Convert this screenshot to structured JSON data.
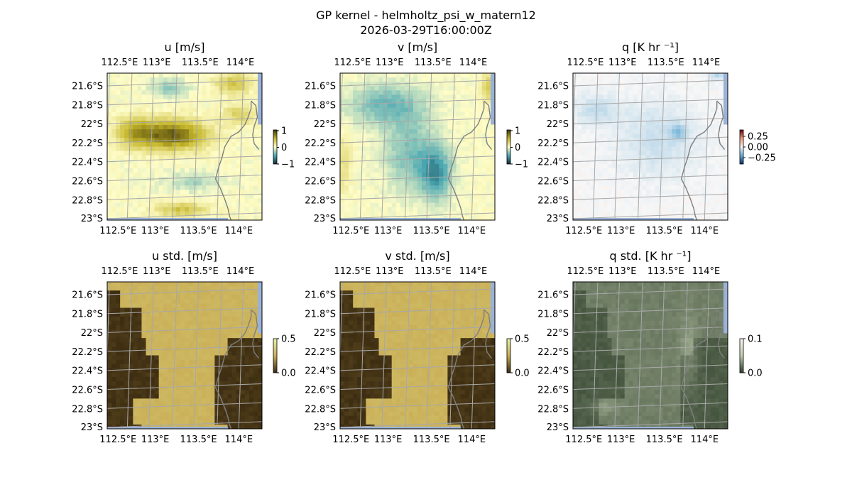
{
  "figure": {
    "title_line1": "GP kernel - helmholtz_psi_w_matern12",
    "title_line2": "2026-03-29T16:00:00Z"
  },
  "chart_data": [
    {
      "type": "heatmap",
      "title": "u [m/s]",
      "x_ticks": [
        "112.5°E",
        "113°E",
        "113.5°E",
        "114°E"
      ],
      "y_ticks": [
        "21.6°S",
        "21.8°S",
        "22°S",
        "22.2°S",
        "22.4°S",
        "22.6°S",
        "22.8°S",
        "23°S"
      ],
      "xlim": [
        112.45,
        114.25
      ],
      "ylim": [
        -23.0,
        -21.47
      ],
      "colorbar": {
        "ticks": [
          "1",
          "0",
          "−1"
        ],
        "range": [
          -1,
          1
        ],
        "colors": [
          "#0b2b3a",
          "#4aa7b2",
          "#fffdc8",
          "#c5b62a",
          "#3d3308"
        ]
      },
      "grid": true,
      "coastline": true,
      "sample_values": [
        [
          0.2,
          -0.3,
          0.5
        ],
        [
          0.8,
          0.9,
          0.6
        ],
        [
          -0.2,
          -0.1,
          0.3
        ],
        [
          0.4,
          0.5,
          0.0
        ]
      ]
    },
    {
      "type": "heatmap",
      "title": "v [m/s]",
      "x_ticks": [
        "112.5°E",
        "113°E",
        "113.5°E",
        "114°E"
      ],
      "y_ticks": [
        "21.6°S",
        "21.8°S",
        "22°S",
        "22.2°S",
        "22.4°S",
        "22.6°S",
        "22.8°S",
        "23°S"
      ],
      "xlim": [
        112.45,
        114.25
      ],
      "ylim": [
        -23.0,
        -21.47
      ],
      "colorbar": {
        "ticks": [
          "1",
          "0",
          "−1"
        ],
        "range": [
          -1,
          1
        ],
        "colors": [
          "#0b2b3a",
          "#4aa7b2",
          "#fffdc8",
          "#c5b62a",
          "#3d3308"
        ]
      },
      "grid": true,
      "coastline": true,
      "sample_values": [
        [
          -0.1,
          -0.2,
          0.3
        ],
        [
          -0.3,
          -0.4,
          -0.2
        ],
        [
          -0.2,
          -0.6,
          -0.5
        ],
        [
          -0.2,
          -0.3,
          0.0
        ]
      ]
    },
    {
      "type": "heatmap",
      "title": "q [K hr ⁻¹]",
      "x_ticks": [
        "112.5°E",
        "113°E",
        "113.5°E",
        "114°E"
      ],
      "y_ticks": [
        "21.6°S",
        "21.8°S",
        "22°S",
        "22.2°S",
        "22.4°S",
        "22.6°S",
        "22.8°S",
        "23°S"
      ],
      "xlim": [
        112.45,
        114.25
      ],
      "ylim": [
        -23.0,
        -21.47
      ],
      "colorbar": {
        "ticks": [
          "0.25",
          "0.00",
          "−0.25"
        ],
        "range": [
          -0.35,
          0.35
        ],
        "colors": [
          "#08306b",
          "#6baed6",
          "#f7f7f7",
          "#ef9a7a",
          "#67000d"
        ]
      },
      "grid": true,
      "coastline": true,
      "sample_values": [
        [
          -0.02,
          -0.05,
          -0.1
        ],
        [
          -0.05,
          -0.08,
          -0.25
        ],
        [
          -0.04,
          -0.06,
          -0.05
        ],
        [
          -0.02,
          -0.03,
          0.0
        ]
      ]
    },
    {
      "type": "heatmap",
      "title": "u std. [m/s]",
      "x_ticks": [
        "112.5°E",
        "113°E",
        "113.5°E",
        "114°E"
      ],
      "y_ticks": [
        "21.6°S",
        "21.8°S",
        "22°S",
        "22.2°S",
        "22.4°S",
        "22.6°S",
        "22.8°S",
        "23°S"
      ],
      "xlim": [
        112.45,
        114.25
      ],
      "ylim": [
        -23.0,
        -21.47
      ],
      "colorbar": {
        "ticks": [
          "0.5",
          "0.0"
        ],
        "range": [
          0,
          0.5
        ],
        "colors": [
          "#3a2a10",
          "#c9ad55",
          "#e4f2a6"
        ]
      },
      "grid": true,
      "coastline": true,
      "sample_values": [
        [
          0.3,
          0.3,
          0.3
        ],
        [
          0.3,
          0.3,
          0.1
        ],
        [
          0.1,
          0.3,
          0.1
        ],
        [
          0.3,
          0.3,
          0.1
        ]
      ]
    },
    {
      "type": "heatmap",
      "title": "v std. [m/s]",
      "x_ticks": [
        "112.5°E",
        "113°E",
        "113.5°E",
        "114°E"
      ],
      "y_ticks": [
        "21.6°S",
        "21.8°S",
        "22°S",
        "22.2°S",
        "22.4°S",
        "22.6°S",
        "22.8°S",
        "23°S"
      ],
      "xlim": [
        112.45,
        114.25
      ],
      "ylim": [
        -23.0,
        -21.47
      ],
      "colorbar": {
        "ticks": [
          "0.5",
          "0.0"
        ],
        "range": [
          0,
          0.5
        ],
        "colors": [
          "#3a2a10",
          "#c9ad55",
          "#e4f2a6"
        ]
      },
      "grid": true,
      "coastline": true,
      "sample_values": [
        [
          0.3,
          0.3,
          0.3
        ],
        [
          0.3,
          0.3,
          0.1
        ],
        [
          0.1,
          0.3,
          0.1
        ],
        [
          0.3,
          0.3,
          0.1
        ]
      ]
    },
    {
      "type": "heatmap",
      "title": "q std. [K hr ⁻¹]",
      "x_ticks": [
        "112.5°E",
        "113°E",
        "113.5°E",
        "114°E"
      ],
      "y_ticks": [
        "21.6°S",
        "21.8°S",
        "22°S",
        "22.2°S",
        "22.4°S",
        "22.6°S",
        "22.8°S",
        "23°S"
      ],
      "xlim": [
        112.45,
        114.25
      ],
      "ylim": [
        -23.0,
        -21.47
      ],
      "colorbar": {
        "ticks": [
          "0.1",
          "0.0"
        ],
        "range": [
          0,
          0.1
        ],
        "colors": [
          "#2f3f2a",
          "#c2cfb2",
          "#fff3f0"
        ]
      },
      "grid": true,
      "coastline": true,
      "sample_values": [
        [
          0.02,
          0.03,
          0.01
        ],
        [
          0.02,
          0.03,
          0.02
        ],
        [
          0.01,
          0.03,
          0.0
        ],
        [
          0.02,
          0.02,
          0.0
        ]
      ]
    }
  ]
}
